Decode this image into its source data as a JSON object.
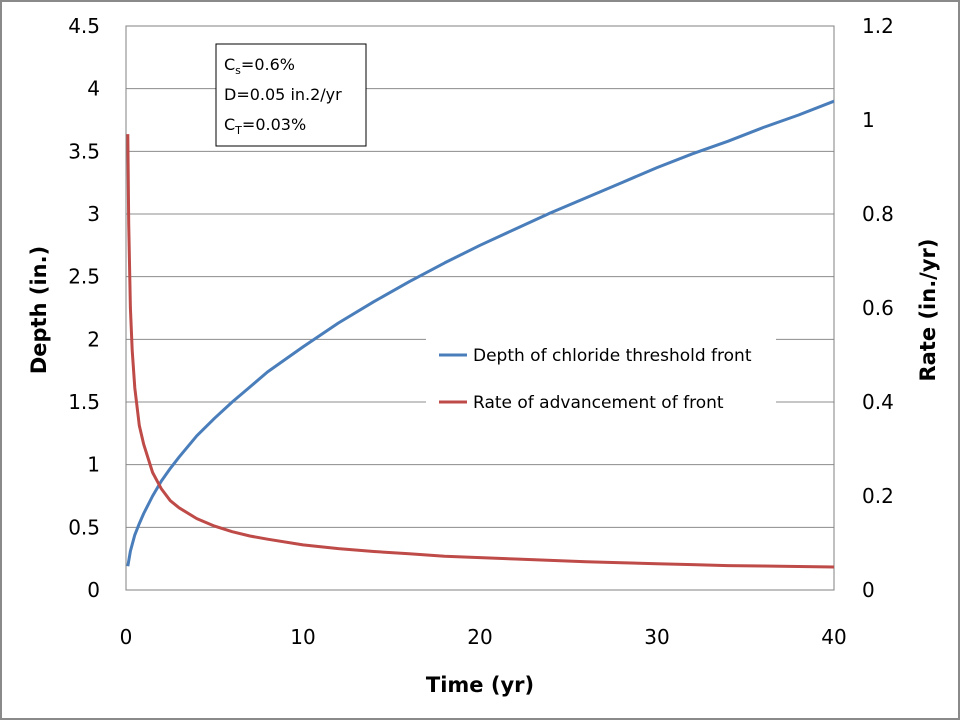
{
  "chart_data": {
    "type": "line",
    "xlabel": "Time (yr)",
    "ylabel": "Depth (in.)",
    "y2label": "Rate (in./yr)",
    "xlim": [
      0,
      40
    ],
    "ylim": [
      0,
      4.5
    ],
    "y2lim": [
      0,
      1.2
    ],
    "xticks": [
      "0",
      "10",
      "20",
      "30",
      "40"
    ],
    "yticks": [
      "0",
      "0.5",
      "1",
      "1.5",
      "2",
      "2.5",
      "3",
      "3.5",
      "4",
      "4.5"
    ],
    "y2ticks": [
      "0",
      "0.2",
      "0.4",
      "0.6",
      "0.8",
      "1",
      "1.2"
    ],
    "grid": true,
    "legend_position": "center-right",
    "annotation": {
      "line1_main": "C",
      "line1_sub": "s",
      "line1_rest": "=0.6%",
      "line2": "D=0.05 in.2/yr",
      "line3_main": "C",
      "line3_sub": "T",
      "line3_rest": "=0.03%"
    },
    "series": [
      {
        "name": "Depth of chloride threshold front",
        "axis": "left",
        "color": "#4a7ebb",
        "x": [
          0.1,
          0.25,
          0.5,
          0.75,
          1,
          1.5,
          2,
          2.5,
          3,
          4,
          5,
          6,
          7,
          8,
          10,
          12,
          14,
          16,
          18,
          20,
          22,
          24,
          26,
          28,
          30,
          32,
          34,
          36,
          38,
          40
        ],
        "y": [
          0.19,
          0.31,
          0.44,
          0.53,
          0.61,
          0.75,
          0.87,
          0.97,
          1.06,
          1.23,
          1.37,
          1.5,
          1.62,
          1.74,
          1.94,
          2.13,
          2.3,
          2.46,
          2.61,
          2.75,
          2.88,
          3.01,
          3.13,
          3.25,
          3.37,
          3.48,
          3.58,
          3.69,
          3.79,
          3.9
        ]
      },
      {
        "name": "Rate of advancement of front",
        "axis": "right",
        "color": "#be4b48",
        "x": [
          0.1,
          0.15,
          0.25,
          0.35,
          0.5,
          0.75,
          1,
          1.5,
          2,
          2.5,
          3,
          4,
          5,
          6,
          7,
          8,
          10,
          12,
          14,
          16,
          18,
          20,
          22,
          24,
          26,
          28,
          30,
          32,
          34,
          36,
          38,
          40
        ],
        "y": [
          0.97,
          0.78,
          0.6,
          0.51,
          0.43,
          0.35,
          0.31,
          0.25,
          0.215,
          0.19,
          0.175,
          0.152,
          0.136,
          0.124,
          0.115,
          0.108,
          0.096,
          0.088,
          0.082,
          0.077,
          0.072,
          0.069,
          0.066,
          0.063,
          0.06,
          0.058,
          0.056,
          0.054,
          0.052,
          0.051,
          0.05,
          0.049
        ]
      }
    ]
  }
}
